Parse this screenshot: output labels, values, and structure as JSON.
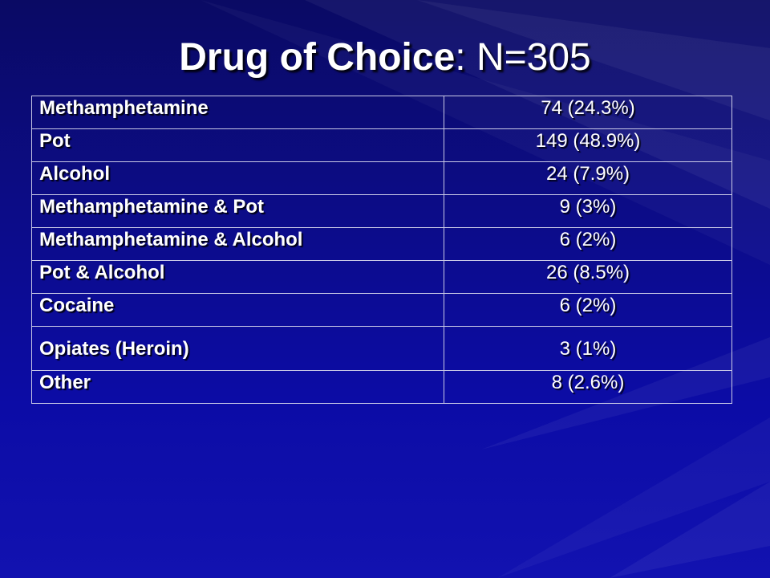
{
  "slide": {
    "title_bold": "Drug of Choice",
    "title_rest": ": N=305",
    "background_color": "#0c0c8a",
    "text_color": "#ffffff"
  },
  "table": {
    "rows": [
      {
        "drug": "Methamphetamine",
        "count": "74 (24.3%)"
      },
      {
        "drug": "Pot",
        "count": "149 (48.9%)"
      },
      {
        "drug": "Alcohol",
        "count": "24 (7.9%)"
      },
      {
        "drug": "Methamphetamine & Pot",
        "count": "9 (3%)"
      },
      {
        "drug": "Methamphetamine & Alcohol",
        "count": "6 (2%)"
      },
      {
        "drug": "Pot & Alcohol",
        "count": "26 (8.5%)"
      },
      {
        "drug": "Cocaine",
        "count": "6 (2%)"
      },
      {
        "drug": "Opiates (Heroin)",
        "count": "3 (1%)"
      },
      {
        "drug": "Other",
        "count": "8 (2.6%)"
      }
    ]
  }
}
